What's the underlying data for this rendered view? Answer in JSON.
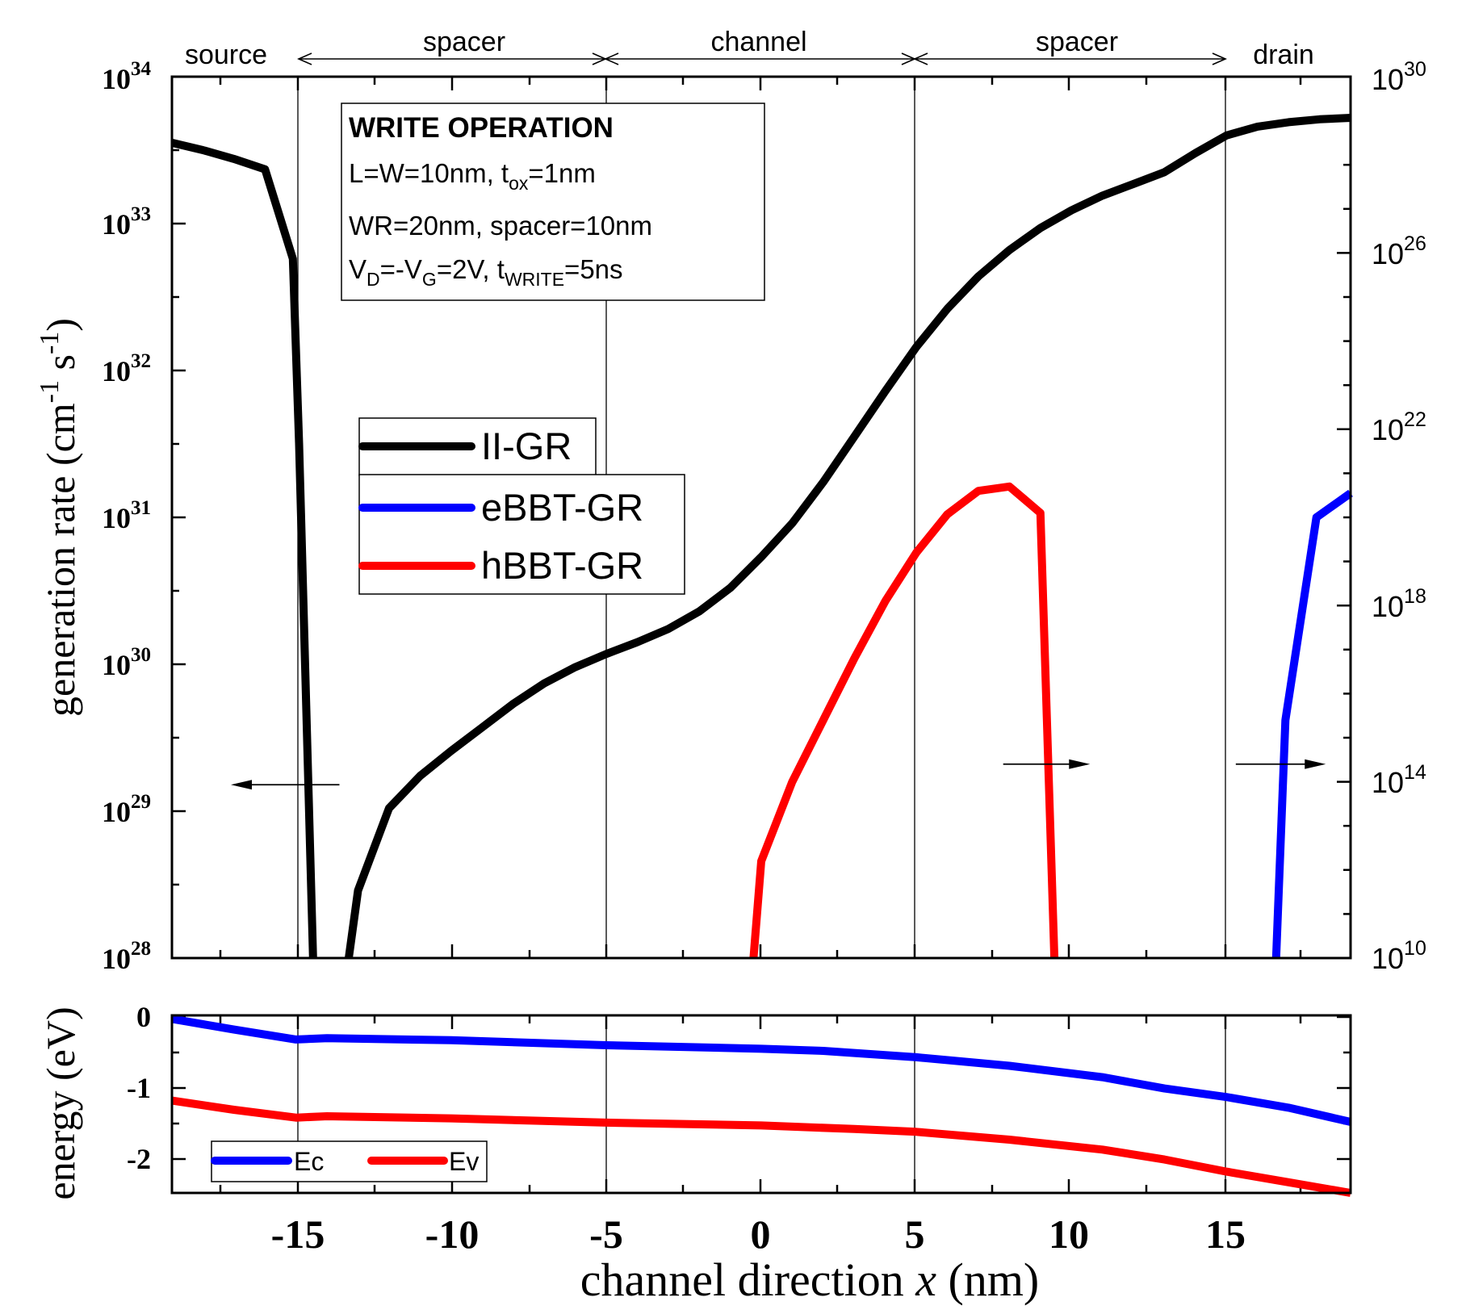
{
  "chart_data": [
    {
      "type": "line",
      "title": "",
      "xlabel_pre": "channel direction ",
      "xlabel_var": "x",
      "xlabel_post": " (nm)",
      "xlim": [
        -19,
        19
      ],
      "ylabel_base": "generation rate (cm",
      "ylabel_exp1": "-1",
      "ylabel_mid": " s",
      "ylabel_exp2": "-1",
      "ylabel_end": ")",
      "y_scale": "log",
      "ylim_left_exp": [
        28,
        34
      ],
      "ylim_right_exp": [
        10,
        30
      ],
      "left_ticks": [
        {
          "base": "10",
          "exp": "28"
        },
        {
          "base": "10",
          "exp": "29"
        },
        {
          "base": "10",
          "exp": "30"
        },
        {
          "base": "10",
          "exp": "31"
        },
        {
          "base": "10",
          "exp": "32"
        },
        {
          "base": "10",
          "exp": "33"
        },
        {
          "base": "10",
          "exp": "34"
        }
      ],
      "right_ticks": [
        {
          "base": "10",
          "exp": "10"
        },
        {
          "base": "10",
          "exp": "14"
        },
        {
          "base": "10",
          "exp": "18"
        },
        {
          "base": "10",
          "exp": "22"
        },
        {
          "base": "10",
          "exp": "26"
        },
        {
          "base": "10",
          "exp": "30"
        }
      ],
      "regions": [
        {
          "label": "source",
          "from": -19,
          "to": -15
        },
        {
          "label": "spacer",
          "from": -15,
          "to": -5
        },
        {
          "label": "channel",
          "from": -5,
          "to": 5
        },
        {
          "label": "spacer",
          "from": 5,
          "to": 15
        },
        {
          "label": "drain",
          "from": 15,
          "to": 19
        }
      ],
      "boundaries": [
        -15,
        -5,
        5,
        15
      ],
      "annotation": {
        "title": "WRITE OPERATION",
        "line1_pre": "L=W=10nm, t",
        "line1_sub": "ox",
        "line1_post": "=1nm",
        "line2": "WR=20nm, spacer=10nm",
        "line3_a": "V",
        "line3_b": "D",
        "line3_c": "=-V",
        "line3_d": "G",
        "line3_e": "=2V, t",
        "line3_f": "WRITE",
        "line3_g": "=5ns"
      },
      "axis_arrows": [
        {
          "series": "II-GR",
          "axis": "left",
          "x_from": -13.6,
          "x_to": -17.1,
          "y_exp": 29.18
        },
        {
          "series": "hBBT-GR",
          "axis": "right",
          "x_from": 7.8,
          "x_to": 10.6,
          "y_exp": 14.4
        },
        {
          "series": "eBBT-GR",
          "axis": "right",
          "x_from": 15.3,
          "x_to": 18.2,
          "y_exp": 14.4
        }
      ],
      "series": [
        {
          "name": "II-GR",
          "axis": "left",
          "color": "#000000",
          "points": [
            [
              -19,
              33.55
            ],
            [
              -18,
              33.5
            ],
            [
              -17,
              33.44
            ],
            [
              -16,
              33.37
            ],
            [
              -15.1,
              32.76
            ],
            [
              -14.9,
              31.5
            ],
            [
              -14.45,
              28.0
            ]
          ]
        },
        {
          "name": "II-GR",
          "axis": "left",
          "color": "#000000",
          "points": [
            [
              -13.3,
              28.0
            ],
            [
              -13,
              28.46
            ],
            [
              -12,
              29.02
            ],
            [
              -11,
              29.24
            ],
            [
              -10,
              29.41
            ],
            [
              -9,
              29.57
            ],
            [
              -8,
              29.73
            ],
            [
              -7,
              29.87
            ],
            [
              -6,
              29.98
            ],
            [
              -5,
              30.07
            ],
            [
              -4,
              30.15
            ],
            [
              -3,
              30.24
            ],
            [
              -2,
              30.36
            ],
            [
              -1,
              30.52
            ],
            [
              0,
              30.73
            ],
            [
              1,
              30.96
            ],
            [
              2,
              31.24
            ],
            [
              3,
              31.55
            ],
            [
              4,
              31.86
            ],
            [
              5,
              32.16
            ],
            [
              6,
              32.42
            ],
            [
              7,
              32.64
            ],
            [
              8,
              32.82
            ],
            [
              9,
              32.97
            ],
            [
              10,
              33.09
            ],
            [
              11,
              33.19
            ],
            [
              12,
              33.27
            ],
            [
              13,
              33.35
            ],
            [
              14,
              33.48
            ],
            [
              15,
              33.6
            ],
            [
              16,
              33.66
            ],
            [
              17,
              33.69
            ],
            [
              18,
              33.71
            ],
            [
              19,
              33.72
            ]
          ]
        },
        {
          "name": "eBBT-GR",
          "axis": "right",
          "color": "#0000ff",
          "points": [
            [
              16.6,
              10.0
            ],
            [
              16.9,
              15.4
            ],
            [
              17.9,
              20.0
            ],
            [
              19,
              20.55
            ]
          ]
        },
        {
          "name": "hBBT-GR",
          "axis": "right",
          "color": "#ff0000",
          "points": [
            [
              -0.25,
              10.0
            ],
            [
              0,
              12.2
            ],
            [
              1,
              14.0
            ],
            [
              2,
              15.4
            ],
            [
              3,
              16.8
            ],
            [
              4,
              18.1
            ],
            [
              5,
              19.2
            ],
            [
              6,
              20.07
            ],
            [
              7,
              20.6
            ],
            [
              8,
              20.7
            ],
            [
              9,
              20.1
            ],
            [
              9.45,
              10.0
            ]
          ]
        }
      ],
      "legend": {
        "placement": "center-left",
        "entries": [
          {
            "name": "II-GR",
            "color": "#000000"
          },
          {
            "name": "eBBT-GR",
            "color": "#0000ff"
          },
          {
            "name": "hBBT-GR",
            "color": "#ff0000"
          }
        ]
      }
    },
    {
      "type": "line",
      "title": "",
      "xlabel": "channel direction x (nm)",
      "ylabel": "energy (eV)",
      "xlim": [
        -19,
        19
      ],
      "ylim": [
        -2.45,
        0.05
      ],
      "x_ticks": [
        -15,
        -10,
        -5,
        0,
        5,
        10,
        15
      ],
      "x_tick_labels": [
        "-15",
        "-10",
        "-5",
        "0",
        "5",
        "10",
        "15"
      ],
      "y_ticks": [
        0,
        -1,
        -2
      ],
      "y_tick_labels": [
        "0",
        "-1",
        "-2"
      ],
      "series": [
        {
          "name": "Ec",
          "color": "#0000ff",
          "points": [
            [
              -19,
              0.0
            ],
            [
              -17,
              -0.15
            ],
            [
              -15,
              -0.29
            ],
            [
              -14,
              -0.27
            ],
            [
              -10,
              -0.3
            ],
            [
              -5,
              -0.37
            ],
            [
              0,
              -0.42
            ],
            [
              2,
              -0.45
            ],
            [
              5,
              -0.54
            ],
            [
              8,
              -0.66
            ],
            [
              11,
              -0.82
            ],
            [
              13,
              -0.98
            ],
            [
              15,
              -1.1
            ],
            [
              17,
              -1.25
            ],
            [
              19,
              -1.45
            ]
          ]
        },
        {
          "name": "Ev",
          "color": "#ff0000",
          "points": [
            [
              -19,
              -1.15
            ],
            [
              -17,
              -1.28
            ],
            [
              -15,
              -1.39
            ],
            [
              -14,
              -1.37
            ],
            [
              -10,
              -1.4
            ],
            [
              -5,
              -1.46
            ],
            [
              0,
              -1.5
            ],
            [
              3,
              -1.55
            ],
            [
              5,
              -1.59
            ],
            [
              8,
              -1.7
            ],
            [
              11,
              -1.84
            ],
            [
              13,
              -1.98
            ],
            [
              15,
              -2.15
            ],
            [
              17,
              -2.3
            ],
            [
              19,
              -2.45
            ]
          ]
        }
      ],
      "legend": {
        "placement": "bottom-left",
        "entries": [
          {
            "name": "Ec",
            "color": "#0000ff"
          },
          {
            "name": "Ev",
            "color": "#ff0000"
          }
        ]
      }
    }
  ]
}
